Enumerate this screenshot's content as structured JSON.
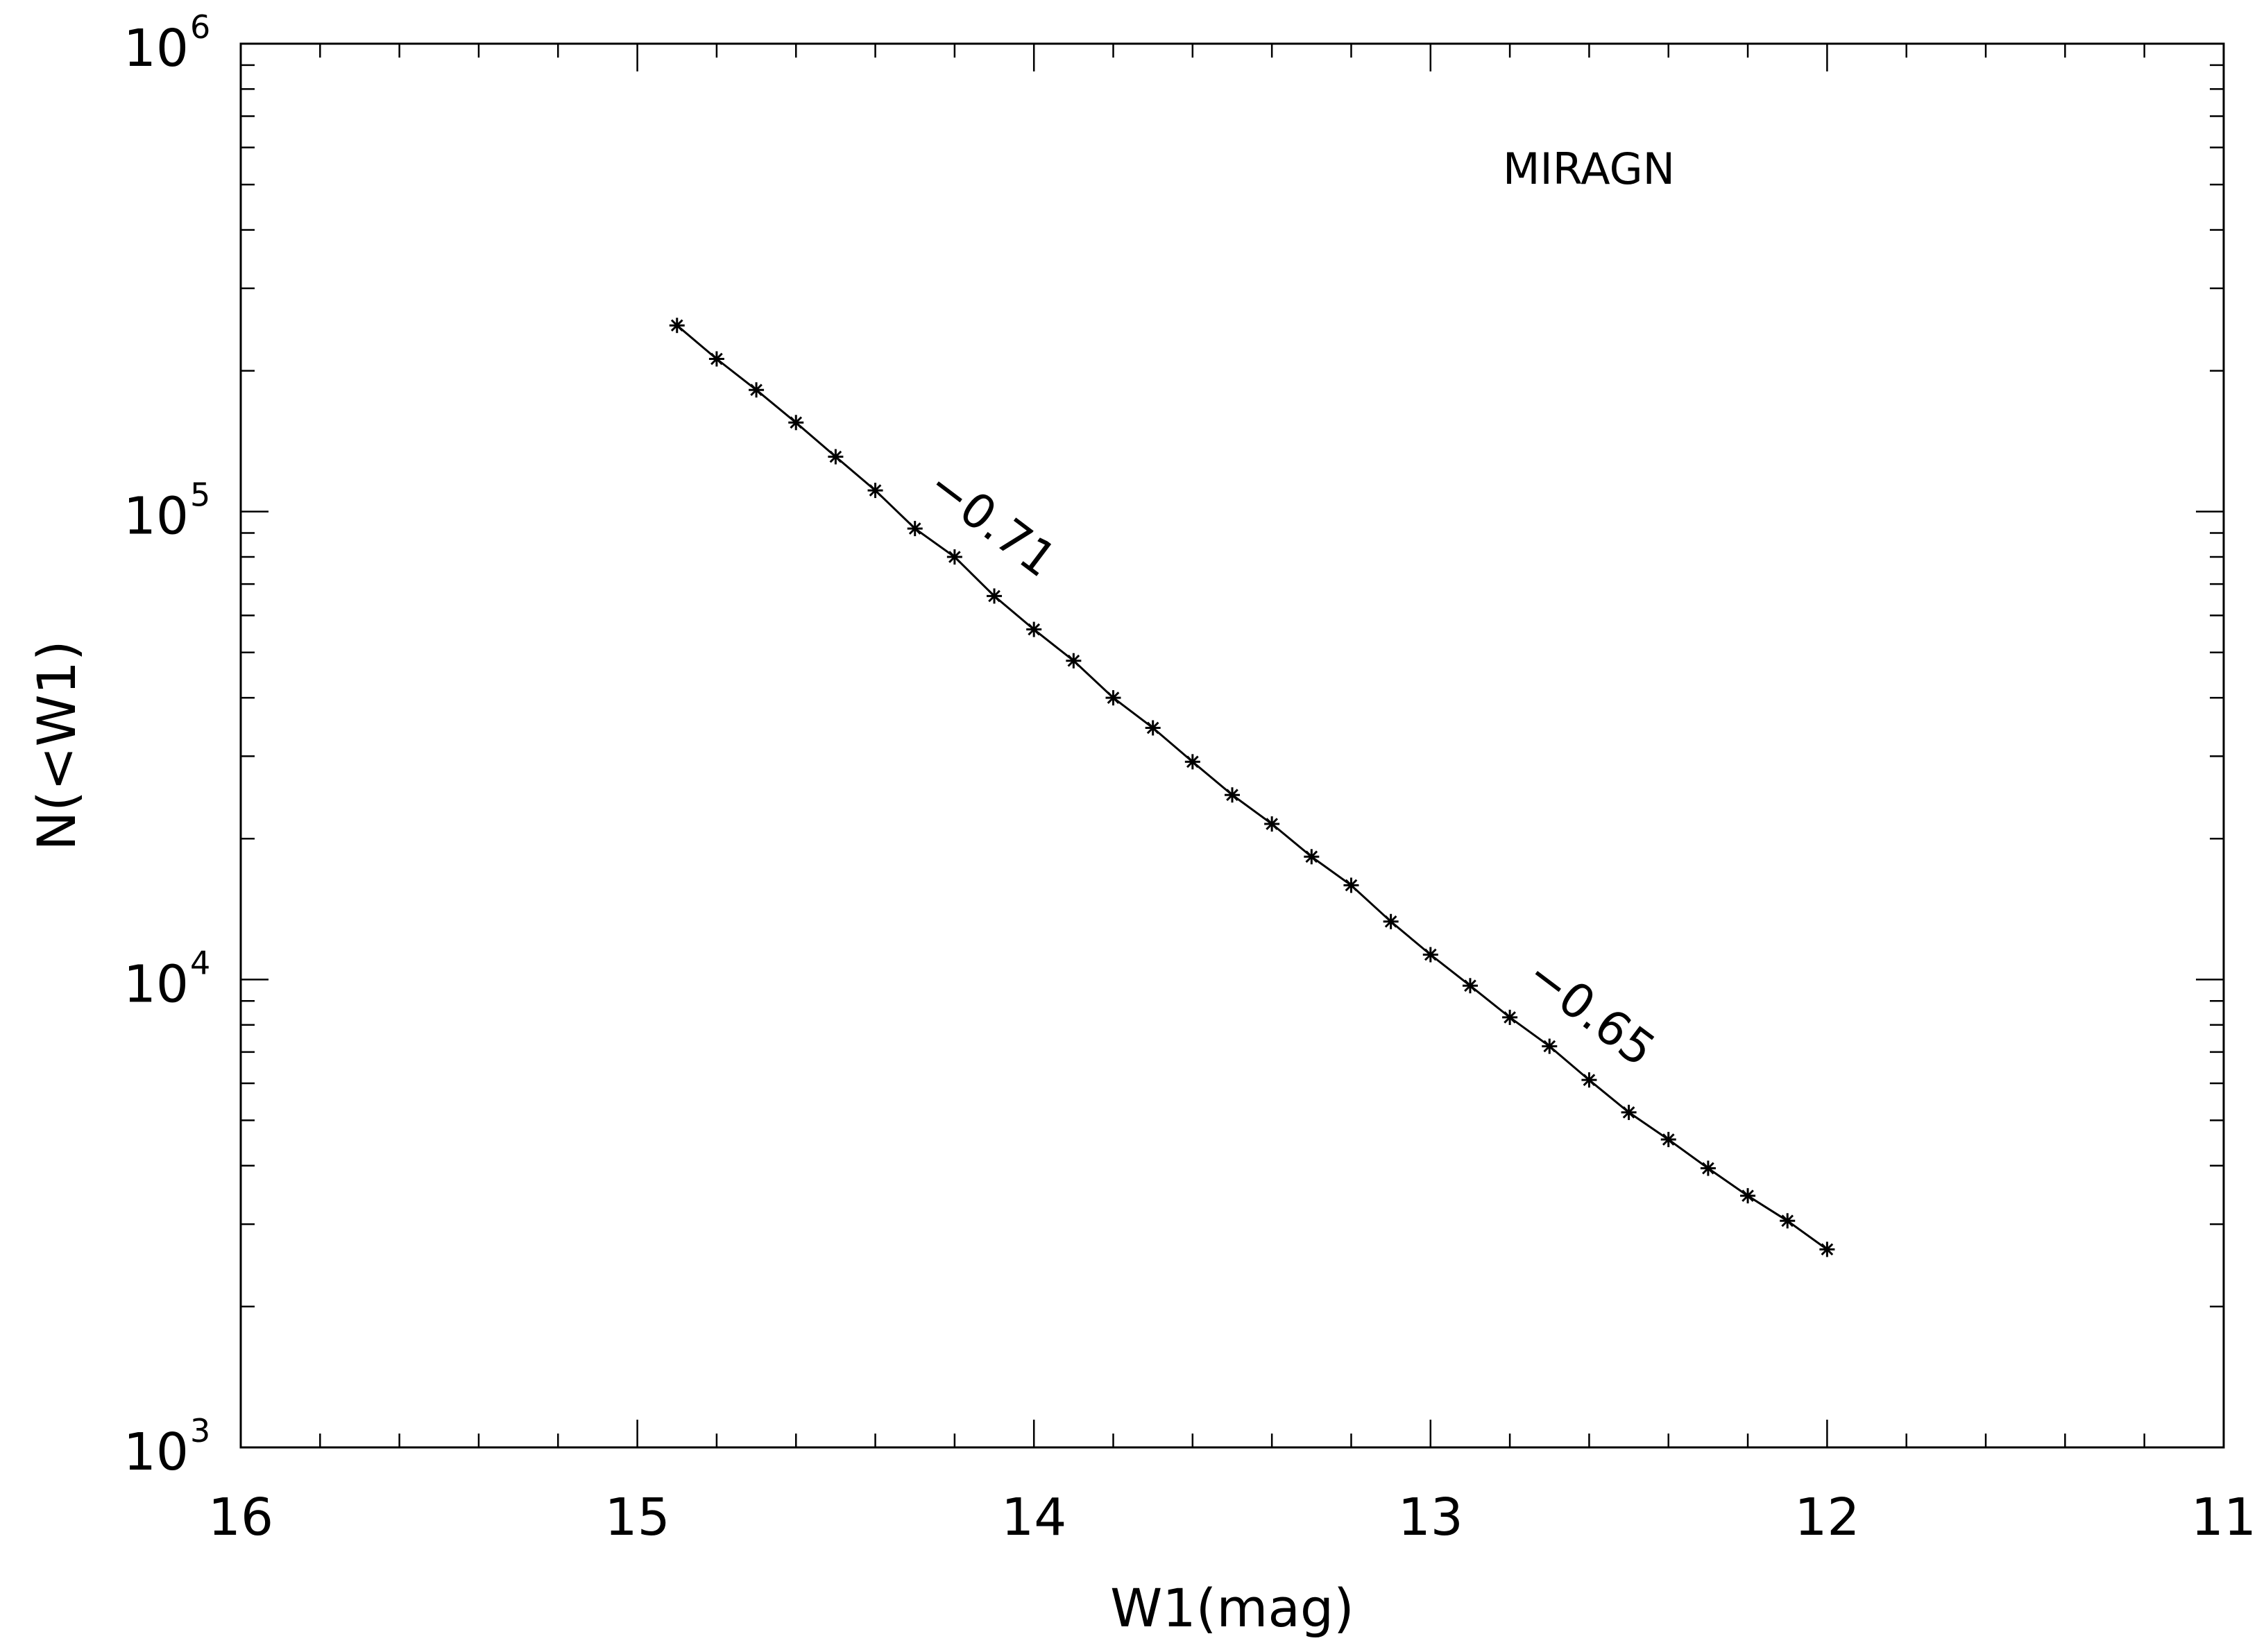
{
  "chart_data": {
    "type": "line",
    "title": "",
    "annotation_label": "MIRAGN",
    "xlabel": "W1(mag)",
    "ylabel": "N(<W1)",
    "xlim": [
      16,
      11
    ],
    "x_reversed": true,
    "ylim": [
      1000,
      1000000
    ],
    "y_scale": "log",
    "x_tick_labels": [
      "16",
      "15",
      "14",
      "13",
      "12",
      "11"
    ],
    "x_ticks": [
      16,
      15,
      14,
      13,
      12,
      11
    ],
    "y_ticks": [
      1000,
      10000,
      100000,
      1000000
    ],
    "y_tick_labels": [
      {
        "base": "10",
        "exp": "3"
      },
      {
        "base": "10",
        "exp": "4"
      },
      {
        "base": "10",
        "exp": "5"
      },
      {
        "base": "10",
        "exp": "6"
      }
    ],
    "slope_labels": [
      {
        "text": "−0.71",
        "x": 14.13,
        "y": 89000
      },
      {
        "text": "−0.65",
        "x": 12.62,
        "y": 8000
      }
    ],
    "grid": false,
    "legend": "none",
    "series": [
      {
        "marker": "asterisk",
        "x": [
          14.9,
          14.8,
          14.7,
          14.6,
          14.5,
          14.4,
          14.3,
          14.2,
          14.1,
          14.0,
          13.9,
          13.8,
          13.7,
          13.6,
          13.5,
          13.4,
          13.3,
          13.2,
          13.1,
          13.0,
          12.9,
          12.8,
          12.7,
          12.6,
          12.5,
          12.4,
          12.3,
          12.2,
          12.1,
          12.0
        ],
        "y": [
          250000,
          212000,
          182000,
          155000,
          131000,
          111000,
          92000,
          80000,
          66000,
          56000,
          48000,
          40000,
          34500,
          29200,
          24800,
          21500,
          18300,
          15900,
          13300,
          11300,
          9700,
          8300,
          7200,
          6100,
          5200,
          4550,
          3950,
          3450,
          3050,
          2650
        ]
      }
    ]
  }
}
